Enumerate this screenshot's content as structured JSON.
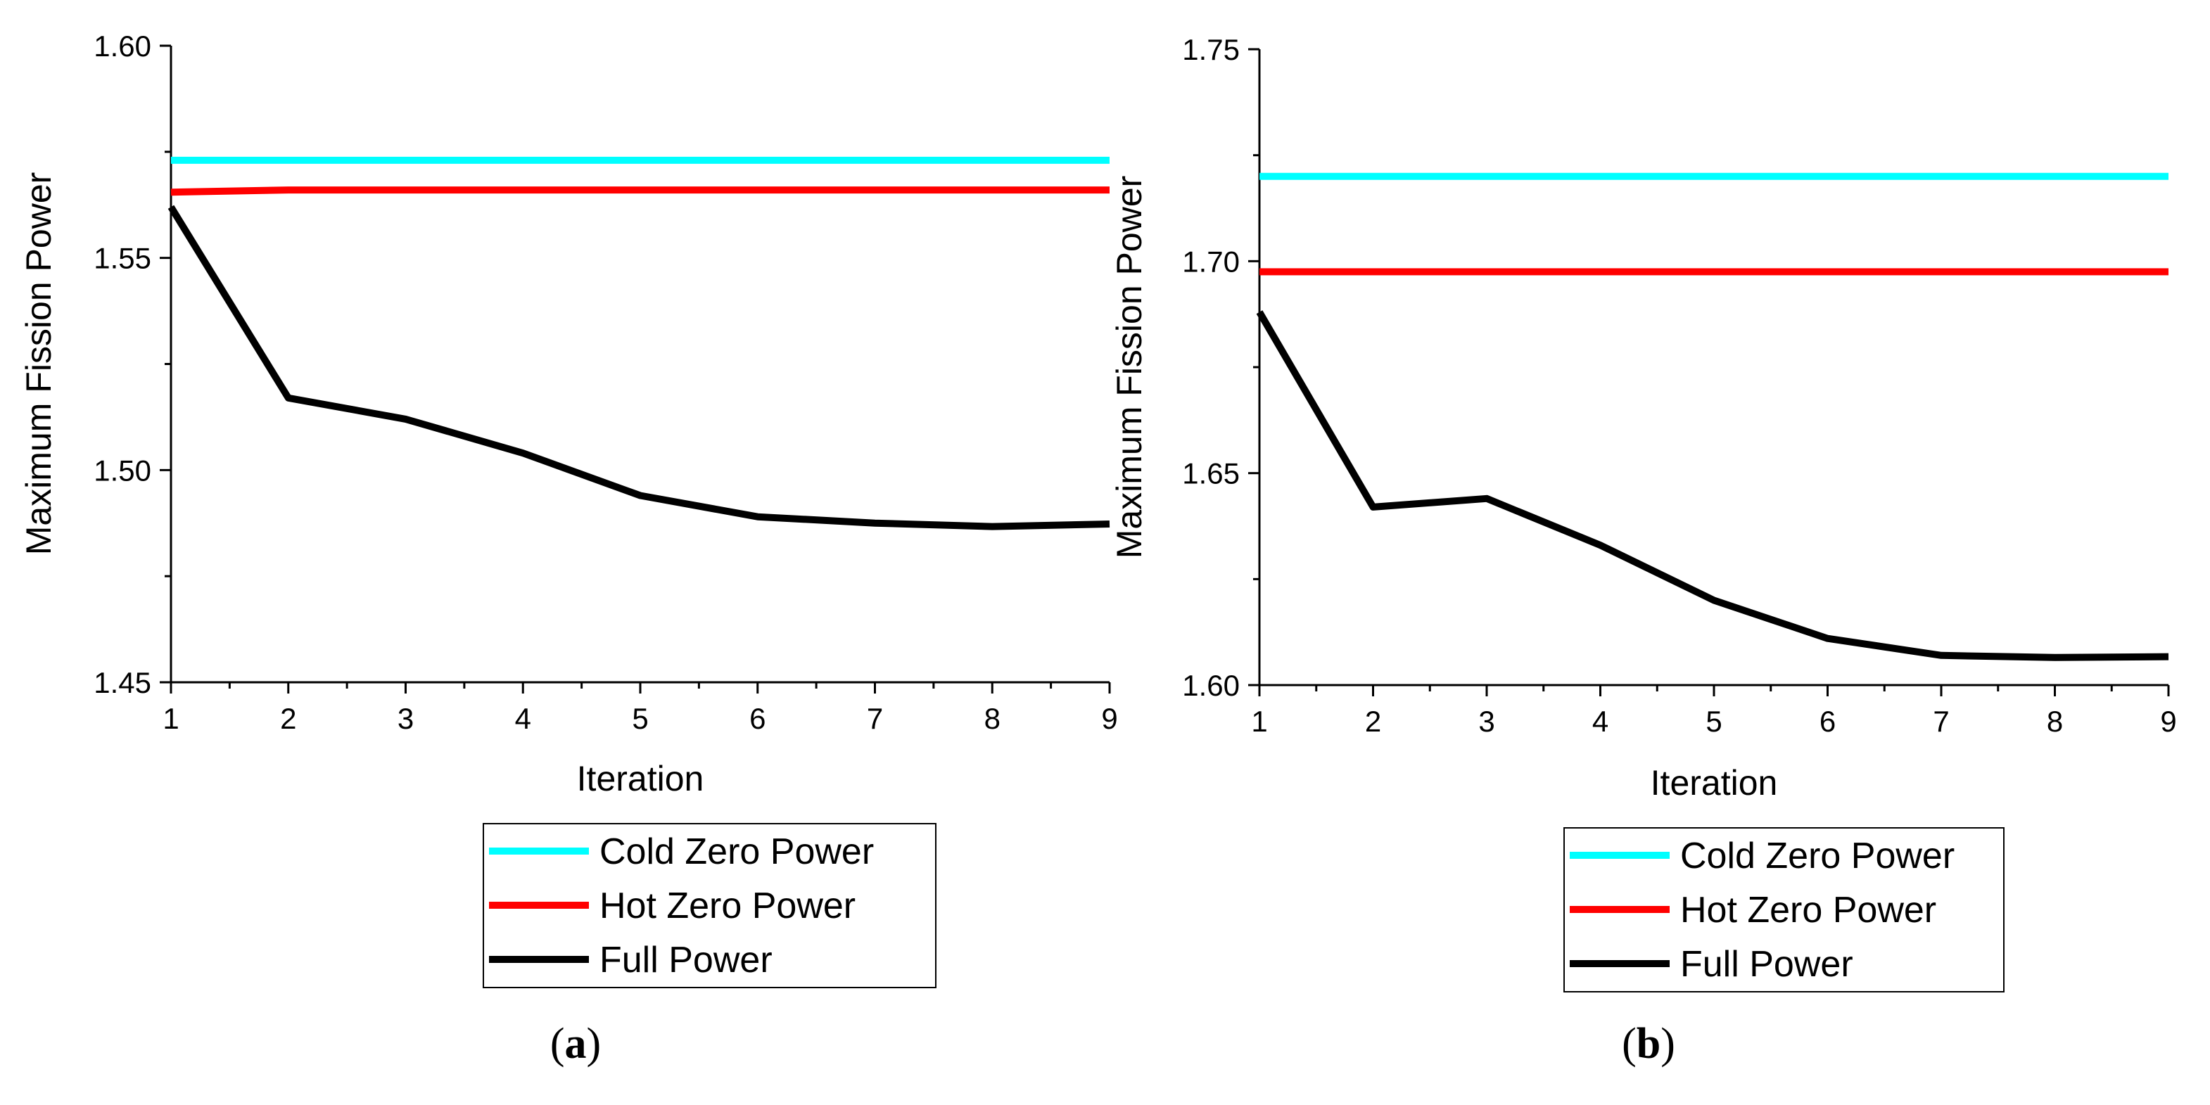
{
  "chart_data": [
    {
      "type": "line",
      "panel_label": {
        "open": "(",
        "letter": "a",
        "close": ")"
      },
      "title": "",
      "xlabel": "Iteration",
      "ylabel": "Maximum Fission Power",
      "xlim": [
        1,
        9
      ],
      "ylim": [
        1.45,
        1.6
      ],
      "x_ticks": [
        "1",
        "2",
        "3",
        "4",
        "5",
        "6",
        "7",
        "8",
        "9"
      ],
      "y_ticks": [
        "1.45",
        "1.50",
        "1.55",
        "1.60"
      ],
      "x": [
        1,
        2,
        3,
        4,
        5,
        6,
        7,
        8,
        9
      ],
      "series": [
        {
          "name": "Cold Zero Power",
          "color": "#00ffff",
          "values": [
            1.573,
            1.573,
            1.573,
            1.573,
            1.573,
            1.573,
            1.573,
            1.573,
            1.573
          ]
        },
        {
          "name": "Hot Zero Power",
          "color": "#ff0000",
          "values": [
            1.5655,
            1.566,
            1.566,
            1.566,
            1.566,
            1.566,
            1.566,
            1.566,
            1.566
          ]
        },
        {
          "name": "Full Power",
          "color": "#000000",
          "values": [
            1.562,
            1.517,
            1.512,
            1.504,
            1.494,
            1.489,
            1.4875,
            1.4867,
            1.4873
          ]
        }
      ],
      "legend": "below"
    },
    {
      "type": "line",
      "panel_label": {
        "open": "(",
        "letter": "b",
        "close": ")"
      },
      "title": "",
      "xlabel": "Iteration",
      "ylabel": "Maximum Fission Power",
      "xlim": [
        1,
        9
      ],
      "ylim": [
        1.6,
        1.75
      ],
      "x_ticks": [
        "1",
        "2",
        "3",
        "4",
        "5",
        "6",
        "7",
        "8",
        "9"
      ],
      "y_ticks": [
        "1.60",
        "1.65",
        "1.70",
        "1.75"
      ],
      "x": [
        1,
        2,
        3,
        4,
        5,
        6,
        7,
        8,
        9
      ],
      "series": [
        {
          "name": "Cold Zero Power",
          "color": "#00ffff",
          "values": [
            1.72,
            1.72,
            1.72,
            1.72,
            1.72,
            1.72,
            1.72,
            1.72,
            1.72
          ]
        },
        {
          "name": "Hot Zero Power",
          "color": "#ff0000",
          "values": [
            1.6975,
            1.6975,
            1.6975,
            1.6975,
            1.6975,
            1.6975,
            1.6975,
            1.6975,
            1.6975
          ]
        },
        {
          "name": "Full Power",
          "color": "#000000",
          "values": [
            1.688,
            1.642,
            1.644,
            1.633,
            1.62,
            1.611,
            1.607,
            1.6065,
            1.6067
          ]
        }
      ],
      "legend": "below"
    }
  ]
}
